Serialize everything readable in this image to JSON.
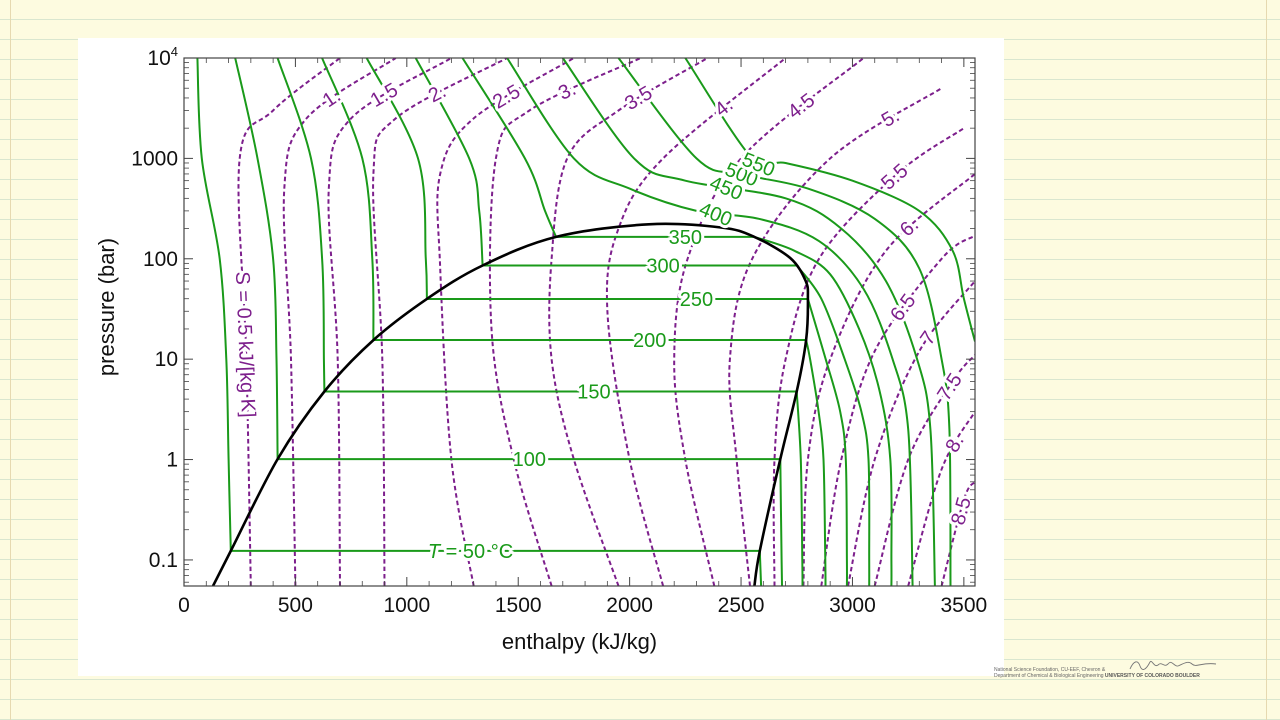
{
  "colors": {
    "isotherm": "#1a9a1a",
    "isentrope": "#7d1f8c",
    "dome": "#000000",
    "frame": "#444444"
  },
  "chart_data": {
    "type": "line",
    "title": "",
    "xlabel": "enthalpy (kJ/kg)",
    "ylabel": "pressure (bar)",
    "xlim": [
      0,
      3550
    ],
    "ylim": [
      0.055,
      10000
    ],
    "y_scale": "log",
    "x_ticks": [
      0,
      500,
      1000,
      1500,
      2000,
      2500,
      3000,
      3500
    ],
    "x_tick_labels": [
      "0",
      "500",
      "1000",
      "1500",
      "2000",
      "2500",
      "3000",
      "3500"
    ],
    "y_ticks": [
      0.1,
      1,
      10,
      100,
      1000,
      10000
    ],
    "y_tick_labels": [
      "0.1",
      "1",
      "10",
      "100",
      "1000",
      "10⁴"
    ],
    "saturation_dome": {
      "liquid_line": [
        [
          130,
          0.055
        ],
        [
          210,
          0.123
        ],
        [
          420,
          1.01
        ],
        [
          630,
          4.76
        ],
        [
          850,
          15.5
        ],
        [
          1090,
          39.8
        ],
        [
          1340,
          85.8
        ],
        [
          1670,
          165.2
        ],
        [
          2086,
          220.6
        ]
      ],
      "vapor_line": [
        [
          2086,
          220.6
        ],
        [
          2410,
          205
        ],
        [
          2560,
          165.2
        ],
        [
          2720,
          102
        ],
        [
          2790,
          60
        ],
        [
          2800,
          39.8
        ],
        [
          2792,
          15.5
        ],
        [
          2750,
          4.76
        ],
        [
          2676,
          1.01
        ],
        [
          2584,
          0.123
        ],
        [
          2560,
          0.055
        ]
      ]
    },
    "isotherms": [
      {
        "T": 50,
        "label": "T = 50 °C",
        "label_h": 1250,
        "p_sat": 0.123,
        "h_liq": 210,
        "h_vap": 2584,
        "liquid": [
          [
            210,
            0.123
          ],
          [
            200,
            1
          ],
          [
            190,
            10
          ],
          [
            160,
            100
          ],
          [
            80,
            1000
          ],
          [
            60,
            10000
          ]
        ],
        "vapor": [
          [
            2584,
            0.123
          ],
          [
            2590,
            0.055
          ]
        ]
      },
      {
        "T": 100,
        "label": "100",
        "label_h": 1550,
        "p_sat": 1.01,
        "h_liq": 420,
        "h_vap": 2676,
        "liquid": [
          [
            420,
            1.01
          ],
          [
            415,
            10
          ],
          [
            400,
            100
          ],
          [
            330,
            1000
          ],
          [
            230,
            10000
          ]
        ],
        "vapor": [
          [
            2676,
            1.01
          ],
          [
            2682,
            0.1
          ],
          [
            2684,
            0.055
          ]
        ]
      },
      {
        "T": 150,
        "label": "150",
        "label_h": 1840,
        "p_sat": 4.76,
        "h_liq": 630,
        "h_vap": 2750,
        "liquid": [
          [
            630,
            4.76
          ],
          [
            628,
            10
          ],
          [
            620,
            100
          ],
          [
            570,
            1000
          ],
          [
            420,
            10000
          ]
        ],
        "vapor": [
          [
            2750,
            4.76
          ],
          [
            2768,
            1
          ],
          [
            2775,
            0.1
          ],
          [
            2776,
            0.055
          ]
        ]
      },
      {
        "T": 200,
        "label": "200",
        "label_h": 2090,
        "p_sat": 15.5,
        "h_liq": 850,
        "h_vap": 2792,
        "liquid": [
          [
            850,
            15.5
          ],
          [
            845,
            100
          ],
          [
            800,
            1000
          ],
          [
            620,
            10000
          ]
        ],
        "vapor": [
          [
            2792,
            15.5
          ],
          [
            2810,
            10
          ],
          [
            2848,
            3
          ],
          [
            2870,
            1
          ],
          [
            2878,
            0.1
          ],
          [
            2879,
            0.055
          ]
        ]
      },
      {
        "T": 250,
        "label": "250",
        "label_h": 2300,
        "p_sat": 39.8,
        "h_liq": 1090,
        "h_vap": 2800,
        "liquid": [
          [
            1090,
            39.8
          ],
          [
            1085,
            100
          ],
          [
            1050,
            1000
          ],
          [
            820,
            10000
          ]
        ],
        "vapor": [
          [
            2800,
            39.8
          ],
          [
            2880,
            10
          ],
          [
            2945,
            3
          ],
          [
            2970,
            1
          ],
          [
            2975,
            0.1
          ],
          [
            2975,
            0.055
          ]
        ]
      },
      {
        "T": 300,
        "label": "300",
        "label_h": 2150,
        "p_sat": 85.8,
        "h_liq": 1340,
        "h_vap": 2750,
        "liquid": [
          [
            1340,
            85.8
          ],
          [
            1325,
            300
          ],
          [
            1280,
            1000
          ],
          [
            1040,
            10000
          ]
        ],
        "vapor": [
          [
            2750,
            85.8
          ],
          [
            2860,
            40
          ],
          [
            2965,
            10
          ],
          [
            3040,
            3
          ],
          [
            3072,
            1
          ],
          [
            3075,
            0.1
          ],
          [
            3075,
            0.055
          ]
        ]
      },
      {
        "T": 350,
        "label": "350",
        "label_h": 2250,
        "p_sat": 165.2,
        "h_liq": 1670,
        "h_vap": 2560,
        "liquid": [
          [
            1670,
            165.2
          ],
          [
            1620,
            300
          ],
          [
            1530,
            1000
          ],
          [
            1250,
            10000
          ]
        ],
        "vapor": [
          [
            2560,
            165.2
          ],
          [
            2740,
            120
          ],
          [
            2900,
            70
          ],
          [
            3030,
            20
          ],
          [
            3120,
            5
          ],
          [
            3170,
            1
          ],
          [
            3175,
            0.1
          ],
          [
            3175,
            0.055
          ]
        ]
      },
      {
        "T": 400,
        "label": "400",
        "label_h": 2380,
        "p_sat": null,
        "h_liq": null,
        "h_vap": null,
        "liquid": [],
        "vapor": [
          [
            1450,
            10000
          ],
          [
            1750,
            1000
          ],
          [
            2000,
            500
          ],
          [
            2300,
            300
          ],
          [
            2580,
            250
          ],
          [
            2850,
            150
          ],
          [
            3050,
            50
          ],
          [
            3180,
            10
          ],
          [
            3250,
            2
          ],
          [
            3270,
            0.055
          ]
        ]
      },
      {
        "T": 450,
        "label": "450",
        "label_h": 2430,
        "p_sat": null,
        "h_liq": null,
        "h_vap": null,
        "liquid": [],
        "vapor": [
          [
            1700,
            10000
          ],
          [
            2020,
            1000
          ],
          [
            2250,
            600
          ],
          [
            2700,
            400
          ],
          [
            2950,
            200
          ],
          [
            3150,
            60
          ],
          [
            3290,
            10
          ],
          [
            3350,
            2
          ],
          [
            3370,
            0.055
          ]
        ]
      },
      {
        "T": 500,
        "label": "500",
        "label_h": 2500,
        "p_sat": null,
        "h_liq": null,
        "h_vap": null,
        "liquid": [],
        "vapor": [
          [
            1950,
            10000
          ],
          [
            2300,
            1000
          ],
          [
            2500,
            700
          ],
          [
            2800,
            500
          ],
          [
            3100,
            250
          ],
          [
            3300,
            80
          ],
          [
            3400,
            10
          ],
          [
            3435,
            2
          ],
          [
            3440,
            0.055
          ]
        ]
      },
      {
        "T": 550,
        "label": "550",
        "label_h": 2580,
        "p_sat": null,
        "h_liq": null,
        "h_vap": null,
        "liquid": [],
        "vapor": [
          [
            2250,
            10000
          ],
          [
            2550,
            1000
          ],
          [
            2700,
            900
          ],
          [
            3000,
            600
          ],
          [
            3300,
            300
          ],
          [
            3450,
            120
          ],
          [
            3500,
            40
          ],
          [
            3550,
            15
          ]
        ]
      }
    ],
    "isentropes": [
      {
        "s": 0.5,
        "label": "S = 0.5 kJ/[kg K]",
        "points": [
          [
            300,
            0.055
          ],
          [
            280,
            10
          ],
          [
            250,
            1000
          ],
          [
            400,
            3000
          ],
          [
            700,
            10000
          ]
        ]
      },
      {
        "s": 1.0,
        "label": "1.",
        "points": [
          [
            500,
            0.055
          ],
          [
            480,
            10
          ],
          [
            450,
            500
          ],
          [
            550,
            2500
          ],
          [
            950,
            10000
          ]
        ]
      },
      {
        "s": 1.5,
        "label": "1.5",
        "points": [
          [
            700,
            0.055
          ],
          [
            690,
            10
          ],
          [
            650,
            500
          ],
          [
            750,
            2500
          ],
          [
            1200,
            10000
          ]
        ]
      },
      {
        "s": 2.0,
        "label": "2.",
        "points": [
          [
            900,
            0.055
          ],
          [
            890,
            10
          ],
          [
            850,
            700
          ],
          [
            950,
            2500
          ],
          [
            1450,
            10000
          ]
        ]
      },
      {
        "s": 2.5,
        "label": "2.5",
        "points": [
          [
            1300,
            0.055
          ],
          [
            1200,
            1
          ],
          [
            1150,
            80
          ],
          [
            1150,
            700
          ],
          [
            1300,
            2500
          ],
          [
            1750,
            10000
          ]
        ]
      },
      {
        "s": 3.0,
        "label": "3.",
        "points": [
          [
            1650,
            0.055
          ],
          [
            1480,
            1
          ],
          [
            1380,
            20
          ],
          [
            1400,
            1000
          ],
          [
            1550,
            3000
          ],
          [
            2050,
            10000
          ]
        ]
      },
      {
        "s": 3.5,
        "label": "3.5",
        "points": [
          [
            1950,
            0.055
          ],
          [
            1750,
            1
          ],
          [
            1650,
            10
          ],
          [
            1650,
            100
          ],
          [
            1720,
            1000
          ],
          [
            1950,
            3000
          ],
          [
            2350,
            10000
          ]
        ]
      },
      {
        "s": 4.0,
        "label": "4.",
        "points": [
          [
            2150,
            0.055
          ],
          [
            2000,
            1
          ],
          [
            1900,
            30
          ],
          [
            1950,
            200
          ],
          [
            2150,
            1000
          ],
          [
            2700,
            10000
          ]
        ]
      },
      {
        "s": 4.5,
        "label": "4.5",
        "points": [
          [
            2380,
            0.055
          ],
          [
            2250,
            1
          ],
          [
            2200,
            10
          ],
          [
            2260,
            100
          ],
          [
            2500,
            1000
          ],
          [
            3050,
            10000
          ]
        ]
      },
      {
        "s": 5.0,
        "label": "5.",
        "points": [
          [
            2540,
            0.055
          ],
          [
            2480,
            1
          ],
          [
            2450,
            10
          ],
          [
            2550,
            100
          ],
          [
            2900,
            1000
          ],
          [
            3400,
            5000
          ]
        ]
      },
      {
        "s": 5.5,
        "label": "5.5",
        "points": [
          [
            2650,
            0.055
          ],
          [
            2650,
            1
          ],
          [
            2700,
            10
          ],
          [
            2850,
            100
          ],
          [
            3200,
            700
          ],
          [
            3500,
            2000
          ]
        ]
      },
      {
        "s": 6.0,
        "label": "6.",
        "points": [
          [
            2780,
            0.055
          ],
          [
            2800,
            1
          ],
          [
            2900,
            10
          ],
          [
            3150,
            120
          ],
          [
            3550,
            700
          ]
        ]
      },
      {
        "s": 6.5,
        "label": "6.5",
        "points": [
          [
            2860,
            0.055
          ],
          [
            2950,
            1
          ],
          [
            3100,
            12
          ],
          [
            3400,
            100
          ],
          [
            3550,
            170
          ]
        ]
      },
      {
        "s": 7.0,
        "label": "7",
        "points": [
          [
            2980,
            0.055
          ],
          [
            3100,
            1
          ],
          [
            3300,
            12
          ],
          [
            3550,
            60
          ]
        ]
      },
      {
        "s": 7.5,
        "label": "7.5",
        "points": [
          [
            3100,
            0.055
          ],
          [
            3250,
            1
          ],
          [
            3450,
            6
          ],
          [
            3550,
            11
          ]
        ]
      },
      {
        "s": 8.0,
        "label": "8.",
        "points": [
          [
            3250,
            0.055
          ],
          [
            3400,
            0.8
          ],
          [
            3550,
            3
          ]
        ]
      },
      {
        "s": 8.5,
        "label": "8.5",
        "points": [
          [
            3400,
            0.055
          ],
          [
            3500,
            0.4
          ],
          [
            3550,
            0.6
          ]
        ]
      }
    ]
  },
  "credit": {
    "line1": "National Science Foundation, CU-EEF, Chevron &",
    "line2": "Department of Chemical & Biological Engineering",
    "university": "UNIVERSITY OF COLORADO BOULDER"
  }
}
